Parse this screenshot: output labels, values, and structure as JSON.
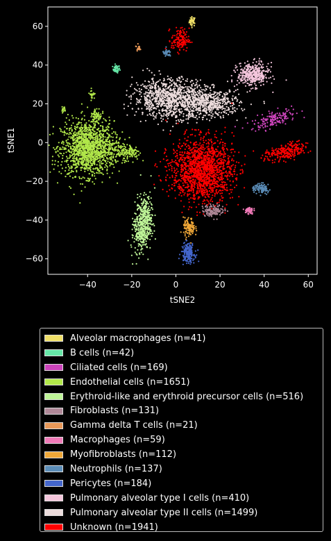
{
  "chart_data": {
    "type": "scatter",
    "title": "",
    "xlabel": "tSNE2",
    "ylabel": "tSNE1",
    "xlim": [
      -58,
      64
    ],
    "ylim": [
      -68,
      70
    ],
    "xticks": [
      -40,
      -20,
      0,
      20,
      40,
      60
    ],
    "yticks": [
      -60,
      -40,
      -20,
      0,
      20,
      40,
      60
    ],
    "xtick_labels": [
      "−40",
      "−20",
      "0",
      "20",
      "40",
      "60"
    ],
    "ytick_labels": [
      "−60",
      "−40",
      "−20",
      "0",
      "20",
      "40",
      "60"
    ],
    "legend_placement": "below",
    "series": [
      {
        "name": "Alveolar macrophages (n=41)",
        "color": "#f0e068",
        "n": 41,
        "clusters": [
          {
            "cx": 7.5,
            "cy": 62.5,
            "sx": 0.7,
            "sy": 1.2,
            "n": 41
          }
        ]
      },
      {
        "name": "B cells (n=42)",
        "color": "#66e8a8",
        "n": 42,
        "clusters": [
          {
            "cx": -27,
            "cy": 38,
            "sx": 0.8,
            "sy": 1.0,
            "n": 42
          }
        ]
      },
      {
        "name": "Ciliated cells (n=169)",
        "color": "#cc44bb",
        "n": 169,
        "clusters": [
          {
            "cx": 44,
            "cy": 12,
            "sx": 5.0,
            "sy": 2.0,
            "n": 169,
            "tilt": 0.35
          }
        ]
      },
      {
        "name": "Endothelial cells (n=1651)",
        "color": "#b2e84a",
        "n": 1651,
        "clusters": [
          {
            "cx": -40,
            "cy": -3,
            "sx": 6.0,
            "sy": 7.0,
            "n": 1350
          },
          {
            "cx": -27,
            "cy": -4,
            "sx": 4.0,
            "sy": 3.0,
            "n": 120
          },
          {
            "cx": -20,
            "cy": -5,
            "sx": 1.8,
            "sy": 2.0,
            "n": 80
          },
          {
            "cx": -36,
            "cy": 14,
            "sx": 1.2,
            "sy": 2.0,
            "n": 60
          },
          {
            "cx": -38,
            "cy": 25,
            "sx": 0.6,
            "sy": 1.2,
            "n": 25
          },
          {
            "cx": -51,
            "cy": 17,
            "sx": 0.5,
            "sy": 0.8,
            "n": 16
          }
        ]
      },
      {
        "name": "Erythroid-like and erythroid precursor cells (n=516)",
        "color": "#bff598",
        "n": 516,
        "clusters": [
          {
            "cx": -15,
            "cy": -42,
            "sx": 2.0,
            "sy": 7.0,
            "n": 516,
            "tilt": -0.12
          }
        ]
      },
      {
        "name": "Fibroblasts (n=131)",
        "color": "#b08898",
        "n": 131,
        "clusters": [
          {
            "cx": 17,
            "cy": -35,
            "sx": 2.5,
            "sy": 1.5,
            "n": 131
          }
        ]
      },
      {
        "name": "Gamma delta T cells (n=21)",
        "color": "#e89858",
        "n": 21,
        "clusters": [
          {
            "cx": -17,
            "cy": 49,
            "sx": 0.4,
            "sy": 0.8,
            "n": 21
          }
        ]
      },
      {
        "name": "Macrophages (n=59)",
        "color": "#f07ab8",
        "n": 59,
        "clusters": [
          {
            "cx": 33,
            "cy": -35,
            "sx": 1.0,
            "sy": 1.0,
            "n": 59
          }
        ]
      },
      {
        "name": "Myofibroblasts (n=112)",
        "color": "#f0a838",
        "n": 112,
        "clusters": [
          {
            "cx": 6,
            "cy": -44,
            "sx": 1.3,
            "sy": 2.5,
            "n": 112
          }
        ]
      },
      {
        "name": "Neutrophils (n=137)",
        "color": "#5b8db8",
        "n": 137,
        "clusters": [
          {
            "cx": 39,
            "cy": -24,
            "sx": 2.0,
            "sy": 1.2,
            "n": 100,
            "tilt": -0.4
          },
          {
            "cx": -4,
            "cy": 46,
            "sx": 1.0,
            "sy": 1.0,
            "n": 37
          }
        ]
      },
      {
        "name": "Pericytes (n=184)",
        "color": "#4466cc",
        "n": 184,
        "clusters": [
          {
            "cx": 5.5,
            "cy": -57,
            "sx": 1.5,
            "sy": 2.5,
            "n": 184
          }
        ]
      },
      {
        "name": "Pulmonary alveolar type I cells (n=410)",
        "color": "#f4c6dc",
        "n": 410,
        "clusters": [
          {
            "cx": 35,
            "cy": 35,
            "sx": 3.5,
            "sy": 3.0,
            "n": 410
          }
        ]
      },
      {
        "name": "Pulmonary alveolar type II cells (n=1499)",
        "color": "#ecdcdc",
        "n": 1499,
        "clusters": [
          {
            "cx": -3,
            "cy": 23,
            "sx": 8.0,
            "sy": 5.0,
            "n": 950
          },
          {
            "cx": 15,
            "cy": 20,
            "sx": 7.0,
            "sy": 3.5,
            "n": 549
          }
        ]
      },
      {
        "name": "Unknown (n=1941)",
        "color": "#ff0000",
        "n": 1941,
        "clusters": [
          {
            "cx": 12,
            "cy": -14,
            "sx": 7.0,
            "sy": 8.0,
            "n": 1550
          },
          {
            "cx": 50,
            "cy": -5,
            "sx": 5.0,
            "sy": 2.0,
            "n": 250,
            "tilt": 0.25
          },
          {
            "cx": 2,
            "cy": 53,
            "sx": 2.0,
            "sy": 3.0,
            "n": 141
          }
        ]
      }
    ]
  }
}
